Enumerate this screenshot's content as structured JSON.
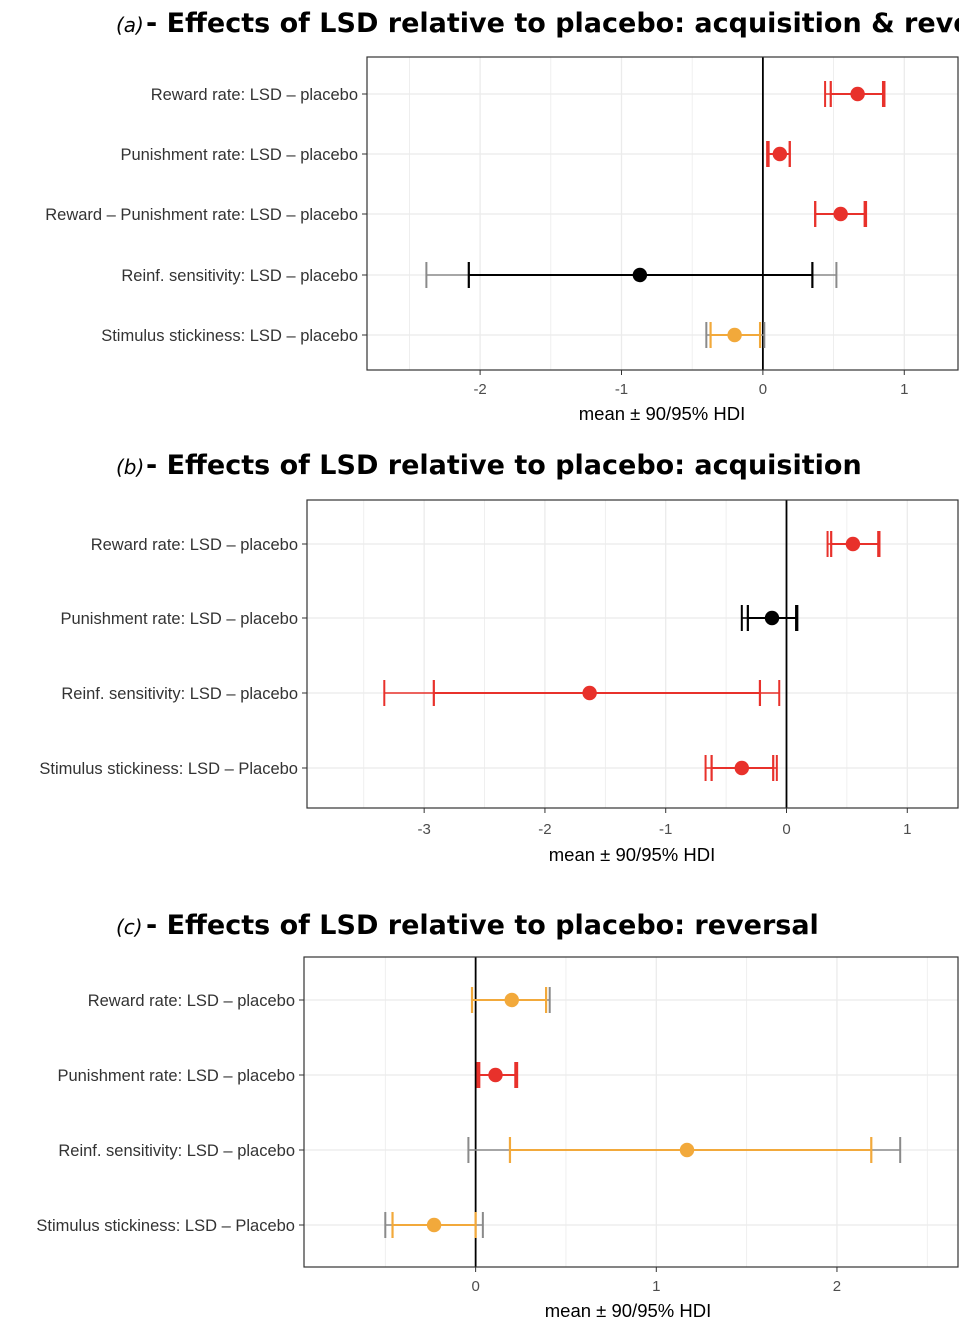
{
  "colors": {
    "red": "#e8312b",
    "black": "#000000",
    "orange": "#f2a93b",
    "gray": "#8a8a8a",
    "grid": "#ebebeb",
    "panel_border": "#333333"
  },
  "chart_data": [
    {
      "type": "forest",
      "panel_letter": "(a)",
      "title": "- Effects of LSD relative to placebo: acquisition & reversal",
      "xlabel": "mean ± 90/95% HDI",
      "xlim": [
        -2.8,
        1.38
      ],
      "xticks": [
        "-2",
        "-1",
        "0",
        "1"
      ],
      "xtick_values": [
        -2,
        -1,
        0,
        1
      ],
      "grid": true,
      "rows": [
        {
          "label": "Reward rate: LSD – placebo",
          "mean": 0.67,
          "hdi90": [
            0.48,
            0.85
          ],
          "hdi95": [
            0.44,
            0.86
          ],
          "color90": "red",
          "color95": "red"
        },
        {
          "label": "Punishment rate: LSD – placebo",
          "mean": 0.12,
          "hdi90": [
            0.04,
            0.19
          ],
          "hdi95": [
            0.03,
            0.19
          ],
          "color90": "red",
          "color95": "red"
        },
        {
          "label": "Reward – Punishment rate: LSD – placebo",
          "mean": 0.55,
          "hdi90": [
            0.37,
            0.72
          ],
          "hdi95": [
            0.37,
            0.73
          ],
          "color90": "red",
          "color95": "red"
        },
        {
          "label": "Reinf. sensitivity: LSD – placebo",
          "mean": -0.87,
          "hdi90": [
            -2.08,
            0.35
          ],
          "hdi95": [
            -2.38,
            0.52
          ],
          "color90": "black",
          "color95": "gray"
        },
        {
          "label": "Stimulus stickiness: LSD – placebo",
          "mean": -0.2,
          "hdi90": [
            -0.37,
            -0.02
          ],
          "hdi95": [
            -0.4,
            0.01
          ],
          "color90": "orange",
          "color95": "gray"
        }
      ]
    },
    {
      "type": "forest",
      "panel_letter": "(b)",
      "title": "- Effects of LSD relative to placebo: acquisition",
      "xlabel": "mean ± 90/95% HDI",
      "xlim": [
        -3.97,
        1.42
      ],
      "xticks": [
        "-3",
        "-2",
        "-1",
        "0",
        "1"
      ],
      "xtick_values": [
        -3,
        -2,
        -1,
        0,
        1
      ],
      "grid": true,
      "rows": [
        {
          "label": "Reward rate: LSD – placebo",
          "mean": 0.55,
          "hdi90": [
            0.37,
            0.76
          ],
          "hdi95": [
            0.34,
            0.77
          ],
          "color90": "red",
          "color95": "red"
        },
        {
          "label": "Punishment rate: LSD – placebo",
          "mean": -0.12,
          "hdi90": [
            -0.32,
            0.08
          ],
          "hdi95": [
            -0.37,
            0.09
          ],
          "color90": "black",
          "color95": "black"
        },
        {
          "label": "Reinf. sensitivity: LSD – placebo",
          "mean": -1.63,
          "hdi90": [
            -2.92,
            -0.22
          ],
          "hdi95": [
            -3.33,
            -0.06
          ],
          "color90": "red",
          "color95": "red"
        },
        {
          "label": "Stimulus stickiness: LSD – Placebo",
          "mean": -0.37,
          "hdi90": [
            -0.62,
            -0.11
          ],
          "hdi95": [
            -0.67,
            -0.08
          ],
          "color90": "red",
          "color95": "red"
        }
      ]
    },
    {
      "type": "forest",
      "panel_letter": "(c)",
      "title": "- Effects of LSD relative to placebo: reversal",
      "xlabel": "mean ± 90/95% HDI",
      "xlim": [
        -0.95,
        2.67
      ],
      "xticks": [
        "0",
        "1",
        "2"
      ],
      "xtick_values": [
        0,
        1,
        2
      ],
      "grid": true,
      "rows": [
        {
          "label": "Reward rate: LSD – placebo",
          "mean": 0.2,
          "hdi90": [
            -0.02,
            0.39
          ],
          "hdi95": [
            -0.02,
            0.41
          ],
          "color90": "orange",
          "color95": "gray"
        },
        {
          "label": "Punishment rate: LSD – placebo",
          "mean": 0.11,
          "hdi90": [
            0.02,
            0.22
          ],
          "hdi95": [
            0.01,
            0.23
          ],
          "color90": "red",
          "color95": "red"
        },
        {
          "label": "Reinf. sensitivity: LSD – placebo",
          "mean": 1.17,
          "hdi90": [
            0.19,
            2.19
          ],
          "hdi95": [
            -0.04,
            2.35
          ],
          "color90": "orange",
          "color95": "gray"
        },
        {
          "label": "Stimulus stickiness: LSD – Placebo",
          "mean": -0.23,
          "hdi90": [
            -0.46,
            0.0
          ],
          "hdi95": [
            -0.5,
            0.04
          ],
          "color90": "orange",
          "color95": "gray"
        }
      ]
    }
  ]
}
